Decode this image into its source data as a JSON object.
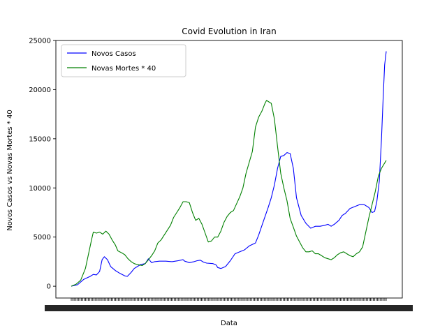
{
  "chart_data": {
    "type": "line",
    "title": "Covid Evolution in Iran",
    "xlabel": "Data",
    "ylabel": "Novos Casos vs Novas Mortes * 40",
    "ylim": [
      -1200,
      25000
    ],
    "yticks": [
      0,
      5000,
      10000,
      15000,
      20000,
      25000
    ],
    "x_index_range": [
      0,
      100
    ],
    "grid": false,
    "legend_position": "top-left",
    "series": [
      {
        "name": "Novos Casos",
        "color": "#0000ff",
        "points": [
          [
            0,
            0
          ],
          [
            2,
            150
          ],
          [
            4,
            700
          ],
          [
            6,
            1000
          ],
          [
            7,
            1200
          ],
          [
            8,
            1150
          ],
          [
            9,
            1500
          ],
          [
            9.8,
            2700
          ],
          [
            10.5,
            3000
          ],
          [
            11.5,
            2700
          ],
          [
            12.5,
            2000
          ],
          [
            14,
            1600
          ],
          [
            15.5,
            1300
          ],
          [
            17,
            1050
          ],
          [
            17.8,
            1000
          ],
          [
            19,
            1400
          ],
          [
            20,
            1800
          ],
          [
            21,
            2000
          ],
          [
            22,
            2200
          ],
          [
            23.5,
            2300
          ],
          [
            24.5,
            2800
          ],
          [
            25.5,
            2400
          ],
          [
            26.5,
            2500
          ],
          [
            28,
            2550
          ],
          [
            30,
            2550
          ],
          [
            32,
            2500
          ],
          [
            34,
            2600
          ],
          [
            35.5,
            2700
          ],
          [
            36,
            2550
          ],
          [
            37.5,
            2400
          ],
          [
            39,
            2500
          ],
          [
            40,
            2600
          ],
          [
            41,
            2650
          ],
          [
            42,
            2450
          ],
          [
            43,
            2350
          ],
          [
            45,
            2300
          ],
          [
            46,
            2150
          ],
          [
            46.5,
            1900
          ],
          [
            47.5,
            1800
          ],
          [
            49,
            2000
          ],
          [
            50.5,
            2600
          ],
          [
            52,
            3300
          ],
          [
            53.5,
            3500
          ],
          [
            55,
            3700
          ],
          [
            56.5,
            4100
          ],
          [
            58.5,
            4400
          ],
          [
            59.5,
            5200
          ],
          [
            61,
            6600
          ],
          [
            62.5,
            8000
          ],
          [
            63.5,
            9000
          ],
          [
            64.5,
            10300
          ],
          [
            65.5,
            12000
          ],
          [
            66.5,
            13200
          ],
          [
            67.5,
            13300
          ],
          [
            68.5,
            13600
          ],
          [
            69.5,
            13500
          ],
          [
            70.5,
            12000
          ],
          [
            71.5,
            9000
          ],
          [
            73,
            7200
          ],
          [
            74.5,
            6400
          ],
          [
            76,
            5900
          ],
          [
            77.5,
            6100
          ],
          [
            79,
            6100
          ],
          [
            80.5,
            6200
          ],
          [
            81.5,
            6300
          ],
          [
            82.5,
            6100
          ],
          [
            83.5,
            6300
          ],
          [
            85,
            6700
          ],
          [
            86,
            7200
          ],
          [
            87,
            7400
          ],
          [
            88.5,
            7900
          ],
          [
            90,
            8100
          ],
          [
            91.5,
            8300
          ],
          [
            93,
            8300
          ],
          [
            94.5,
            8000
          ],
          [
            95.5,
            7500
          ],
          [
            96.3,
            7600
          ],
          [
            97,
            8600
          ],
          [
            97.8,
            10700
          ],
          [
            98.5,
            15000
          ],
          [
            99,
            19000
          ],
          [
            99.5,
            22500
          ],
          [
            100,
            23900
          ]
        ]
      },
      {
        "name": "Novas Mortes * 40",
        "color": "#008000",
        "points": [
          [
            0,
            0
          ],
          [
            1.5,
            200
          ],
          [
            3,
            600
          ],
          [
            4.5,
            1800
          ],
          [
            5.5,
            3300
          ],
          [
            6.5,
            4800
          ],
          [
            7,
            5500
          ],
          [
            8,
            5400
          ],
          [
            9,
            5500
          ],
          [
            10,
            5300
          ],
          [
            11,
            5600
          ],
          [
            12,
            5300
          ],
          [
            13,
            4700
          ],
          [
            14,
            4200
          ],
          [
            14.8,
            3600
          ],
          [
            16,
            3400
          ],
          [
            17,
            3200
          ],
          [
            18,
            2800
          ],
          [
            19,
            2500
          ],
          [
            20,
            2300
          ],
          [
            21,
            2200
          ],
          [
            22.5,
            2100
          ],
          [
            23.5,
            2300
          ],
          [
            24.5,
            2700
          ],
          [
            25.5,
            3100
          ],
          [
            26.5,
            3600
          ],
          [
            27.5,
            4400
          ],
          [
            28.5,
            4700
          ],
          [
            29.5,
            5200
          ],
          [
            30.5,
            5700
          ],
          [
            31.5,
            6200
          ],
          [
            32.5,
            7000
          ],
          [
            33.5,
            7500
          ],
          [
            34.5,
            8000
          ],
          [
            35.5,
            8600
          ],
          [
            36.5,
            8600
          ],
          [
            37.5,
            8500
          ],
          [
            38.5,
            7500
          ],
          [
            39.5,
            6700
          ],
          [
            40.5,
            6900
          ],
          [
            41.5,
            6300
          ],
          [
            42.5,
            5400
          ],
          [
            43.5,
            4500
          ],
          [
            44.5,
            4600
          ],
          [
            45.5,
            5000
          ],
          [
            46.5,
            5000
          ],
          [
            47.5,
            5600
          ],
          [
            48.5,
            6500
          ],
          [
            49.5,
            7100
          ],
          [
            50.5,
            7500
          ],
          [
            51.5,
            7700
          ],
          [
            52.5,
            8400
          ],
          [
            53.5,
            9100
          ],
          [
            54.5,
            10000
          ],
          [
            55.5,
            11500
          ],
          [
            56.5,
            12600
          ],
          [
            57.5,
            13700
          ],
          [
            58.5,
            16200
          ],
          [
            59.5,
            17200
          ],
          [
            60.5,
            17800
          ],
          [
            61.5,
            18600
          ],
          [
            62,
            18900
          ],
          [
            63.5,
            18600
          ],
          [
            64.5,
            17000
          ],
          [
            65.5,
            14200
          ],
          [
            66.5,
            11500
          ],
          [
            67.5,
            10000
          ],
          [
            68.5,
            8700
          ],
          [
            69.5,
            6900
          ],
          [
            70.5,
            6000
          ],
          [
            71.5,
            5100
          ],
          [
            72.5,
            4500
          ],
          [
            73.5,
            3900
          ],
          [
            74.5,
            3500
          ],
          [
            75.5,
            3500
          ],
          [
            76.5,
            3600
          ],
          [
            77.5,
            3300
          ],
          [
            78.5,
            3300
          ],
          [
            79.5,
            3100
          ],
          [
            80.5,
            2900
          ],
          [
            81.5,
            2800
          ],
          [
            82.5,
            2700
          ],
          [
            83.5,
            2900
          ],
          [
            84.5,
            3200
          ],
          [
            85.5,
            3400
          ],
          [
            86.5,
            3500
          ],
          [
            87.5,
            3300
          ],
          [
            88.5,
            3100
          ],
          [
            89.5,
            3000
          ],
          [
            90.5,
            3300
          ],
          [
            91.5,
            3500
          ],
          [
            92.5,
            4000
          ],
          [
            93.5,
            5500
          ],
          [
            94.5,
            7000
          ],
          [
            95.5,
            8300
          ],
          [
            96.5,
            9600
          ],
          [
            97.5,
            11200
          ],
          [
            98.5,
            12000
          ],
          [
            100,
            12800
          ]
        ]
      }
    ]
  }
}
